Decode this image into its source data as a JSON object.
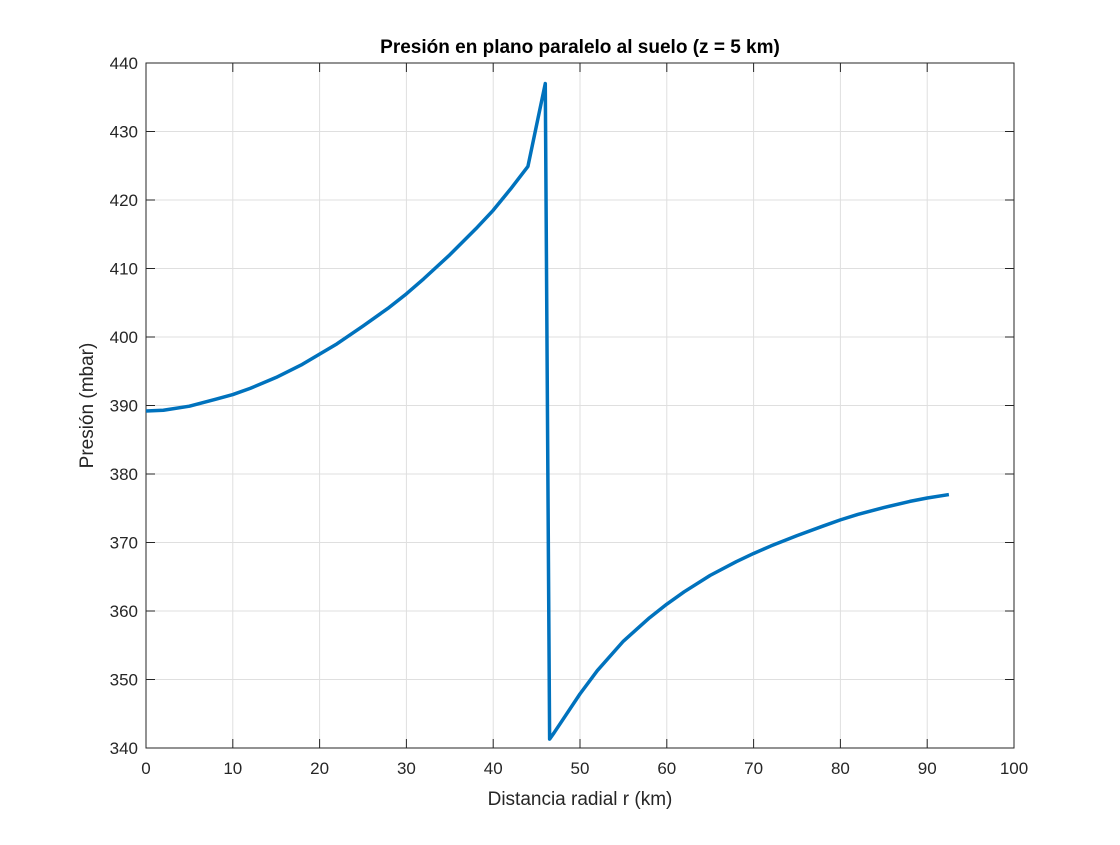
{
  "chart_data": {
    "type": "line",
    "title": "Presión en plano paralelo al suelo (z = 5 km)",
    "xlabel": "Distancia radial r (km)",
    "ylabel": "Presión (mbar)",
    "xlim": [
      0,
      100
    ],
    "ylim": [
      340,
      440
    ],
    "xticks": [
      "0",
      "10",
      "20",
      "30",
      "40",
      "50",
      "60",
      "70",
      "80",
      "90",
      "100"
    ],
    "yticks": [
      "340",
      "350",
      "360",
      "370",
      "380",
      "390",
      "400",
      "410",
      "420",
      "430",
      "440"
    ],
    "grid": true,
    "legend": "none",
    "series": [
      {
        "color": "#0072bd",
        "x": [
          0,
          2,
          5,
          8,
          10,
          12,
          15,
          18,
          20,
          22,
          25,
          28,
          30,
          32,
          35,
          38,
          40,
          42,
          44,
          46,
          46.5,
          47,
          48,
          50,
          52,
          55,
          58,
          60,
          62,
          65,
          68,
          70,
          72,
          75,
          78,
          80,
          82,
          85,
          88,
          90,
          92.5
        ],
        "y": [
          389.2,
          389.3,
          389.9,
          390.9,
          391.6,
          392.5,
          394.1,
          396.0,
          397.5,
          399.0,
          401.6,
          404.3,
          406.3,
          408.5,
          412.0,
          415.8,
          418.5,
          421.6,
          424.9,
          437.0,
          341.3,
          342.2,
          344.1,
          347.9,
          351.3,
          355.6,
          359.0,
          361.0,
          362.8,
          365.2,
          367.2,
          368.4,
          369.5,
          371.0,
          372.4,
          373.3,
          374.1,
          375.1,
          376.0,
          376.5,
          377.0
        ]
      }
    ]
  }
}
